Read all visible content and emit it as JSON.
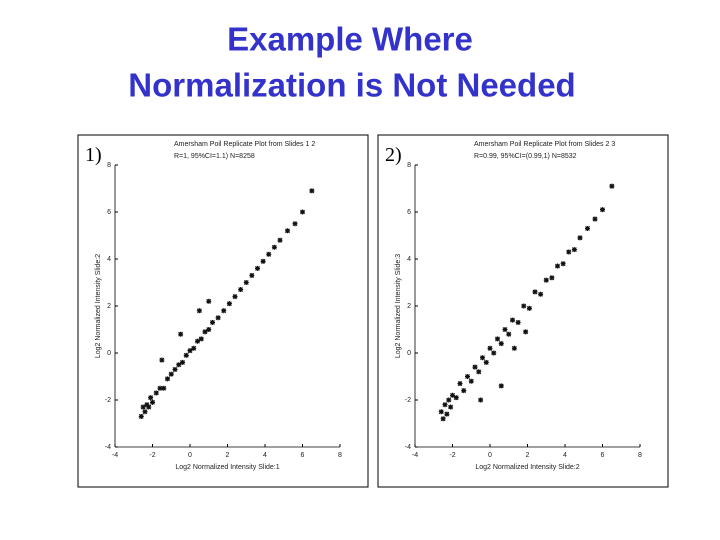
{
  "title": [
    "Example Where",
    "Normalization is Not Needed"
  ],
  "chart_data": [
    {
      "type": "scatter",
      "panel_label": "1)",
      "title": "Amersham Poil Replicate Plot from Slides 1 2",
      "subtitle": "R=1, 95%CI=1.1) N=8258",
      "x_label": "Log2 Normalized Intensity Slide:1",
      "y_label": "Log2 Normalized Intensity Slide:2",
      "xlim": [
        -4,
        8
      ],
      "ylim": [
        -4,
        8
      ],
      "xticks": [
        -4,
        -2,
        0,
        2,
        4,
        6,
        8
      ],
      "yticks": [
        -4,
        -2,
        0,
        2,
        4,
        6,
        8
      ],
      "color": "#111111",
      "x": [
        -2.6,
        -2.5,
        -2.4,
        -2.3,
        -2.2,
        -2.1,
        -2.0,
        -1.8,
        -1.6,
        -1.4,
        -1.2,
        -1.0,
        -0.8,
        -0.6,
        -0.4,
        -0.2,
        0,
        0.2,
        0.4,
        0.6,
        0.8,
        1.0,
        1.2,
        1.5,
        1.8,
        2.1,
        2.4,
        2.7,
        3.0,
        3.3,
        3.6,
        3.9,
        4.2,
        4.5,
        4.8,
        5.2,
        5.6,
        6.0,
        6.5,
        -1.5,
        -0.5,
        0.5,
        1.0
      ],
      "y": [
        -2.7,
        -2.3,
        -2.5,
        -2.2,
        -2.3,
        -1.9,
        -2.1,
        -1.7,
        -1.5,
        -1.5,
        -1.1,
        -0.9,
        -0.7,
        -0.5,
        -0.4,
        -0.1,
        0.1,
        0.2,
        0.5,
        0.6,
        0.9,
        1.0,
        1.3,
        1.5,
        1.8,
        2.1,
        2.4,
        2.7,
        3.0,
        3.3,
        3.6,
        3.9,
        4.2,
        4.5,
        4.8,
        5.2,
        5.5,
        6.0,
        6.9,
        -0.3,
        0.8,
        1.8,
        2.2
      ]
    },
    {
      "type": "scatter",
      "panel_label": "2)",
      "title": "Amersham Poil Replicate Plot from Slides 2 3",
      "subtitle": "R=0.99, 95%CI=(0.99,1) N=8532",
      "x_label": "Log2 Normalized Intensity Slide:2",
      "y_label": "Log2 Normalized Intensity Slide:3",
      "xlim": [
        -4,
        8
      ],
      "ylim": [
        -4,
        8
      ],
      "xticks": [
        -4,
        -2,
        0,
        2,
        4,
        6,
        8
      ],
      "yticks": [
        -4,
        -2,
        0,
        2,
        4,
        6,
        8
      ],
      "color": "#111111",
      "x": [
        -2.6,
        -2.5,
        -2.4,
        -2.3,
        -2.2,
        -2.1,
        -2.0,
        -1.8,
        -1.6,
        -1.4,
        -1.2,
        -1.0,
        -0.8,
        -0.6,
        -0.4,
        -0.2,
        0,
        0.2,
        0.4,
        0.6,
        0.8,
        1.0,
        1.2,
        1.5,
        1.8,
        2.1,
        2.4,
        2.7,
        3.0,
        3.3,
        3.6,
        3.9,
        4.2,
        4.5,
        4.8,
        5.2,
        5.6,
        6.0,
        6.5,
        1.3,
        1.9,
        0.6,
        -0.5
      ],
      "y": [
        -2.5,
        -2.8,
        -2.2,
        -2.6,
        -2.0,
        -2.3,
        -1.8,
        -1.9,
        -1.3,
        -1.6,
        -1.0,
        -1.2,
        -0.6,
        -0.8,
        -0.2,
        -0.4,
        0.2,
        0.0,
        0.6,
        0.4,
        1.0,
        0.8,
        1.4,
        1.3,
        2.0,
        1.9,
        2.6,
        2.5,
        3.1,
        3.2,
        3.7,
        3.8,
        4.3,
        4.4,
        4.9,
        5.3,
        5.7,
        6.1,
        7.1,
        0.2,
        0.9,
        -1.4,
        -2.0
      ]
    }
  ]
}
